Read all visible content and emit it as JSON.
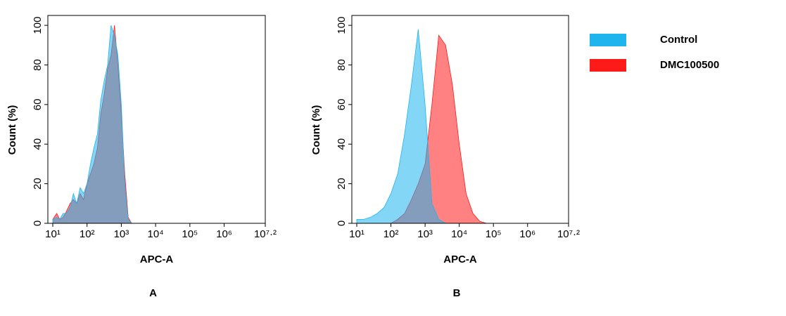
{
  "legend": [
    {
      "name": "Control",
      "color": "#1fb4ee"
    },
    {
      "name": "DMC100500",
      "color": "#ff1a1a"
    }
  ],
  "chart_data": [
    {
      "type": "area",
      "label": "A",
      "x_label": "APC-A",
      "y_label": "Count  (%)",
      "log_x": true,
      "x": [
        10,
        13,
        16,
        20,
        25,
        32,
        40,
        50,
        63,
        79,
        100,
        126,
        158,
        200,
        251,
        316,
        398,
        501,
        631,
        794,
        1000,
        1259,
        1585,
        1995,
        3162,
        10000,
        15848932
      ],
      "series": [
        {
          "color": "#ff1a1a",
          "values": [
            2,
            5,
            2,
            3,
            6,
            10,
            12,
            10,
            15,
            12,
            20,
            25,
            30,
            38,
            55,
            65,
            78,
            85,
            100,
            80,
            55,
            25,
            3,
            0,
            0,
            0,
            0
          ]
        },
        {
          "color": "#1fb4ee",
          "values": [
            2,
            3,
            2,
            5,
            5,
            8,
            15,
            10,
            18,
            15,
            20,
            30,
            38,
            45,
            62,
            72,
            80,
            100,
            95,
            85,
            60,
            20,
            2,
            0,
            0,
            0,
            0
          ]
        }
      ],
      "xlim": [
        10,
        15848932
      ],
      "xticks": [
        {
          "value": 10,
          "label": "10¹"
        },
        {
          "value": 100,
          "label": "10²"
        },
        {
          "value": 1000,
          "label": "10³"
        },
        {
          "value": 10000,
          "label": "10⁴"
        },
        {
          "value": 100000,
          "label": "10⁵"
        },
        {
          "value": 1000000,
          "label": "10⁶"
        },
        {
          "value": 15848932,
          "label": "10⁷·²"
        }
      ],
      "ylim": [
        0,
        105
      ],
      "yticks": [
        0,
        20,
        40,
        60,
        80,
        100
      ]
    },
    {
      "type": "area",
      "label": "B",
      "x_label": "APC-A",
      "y_label": "Count  (%)",
      "log_x": true,
      "x": [
        10,
        16,
        25,
        40,
        63,
        100,
        158,
        251,
        398,
        631,
        1000,
        1585,
        2512,
        3981,
        6310,
        10000,
        15849,
        25119,
        39811,
        63096,
        100000,
        15848932
      ],
      "series": [
        {
          "color": "#ff1a1a",
          "values": [
            0,
            0,
            0,
            0,
            0,
            0,
            2,
            5,
            12,
            20,
            30,
            60,
            95,
            90,
            70,
            40,
            15,
            5,
            1,
            0,
            0,
            0
          ]
        },
        {
          "color": "#1fb4ee",
          "values": [
            2,
            2,
            3,
            5,
            8,
            15,
            25,
            45,
            70,
            98,
            60,
            10,
            2,
            0,
            0,
            0,
            0,
            0,
            0,
            0,
            0,
            0
          ]
        }
      ],
      "xlim": [
        10,
        15848932
      ],
      "xticks": [
        {
          "value": 10,
          "label": "10¹"
        },
        {
          "value": 100,
          "label": "10²"
        },
        {
          "value": 1000,
          "label": "10³"
        },
        {
          "value": 10000,
          "label": "10⁴"
        },
        {
          "value": 100000,
          "label": "10⁵"
        },
        {
          "value": 1000000,
          "label": "10⁶"
        },
        {
          "value": 15848932,
          "label": "10⁷·²"
        }
      ],
      "ylim": [
        0,
        105
      ],
      "yticks": [
        0,
        20,
        40,
        60,
        80,
        100
      ]
    }
  ]
}
